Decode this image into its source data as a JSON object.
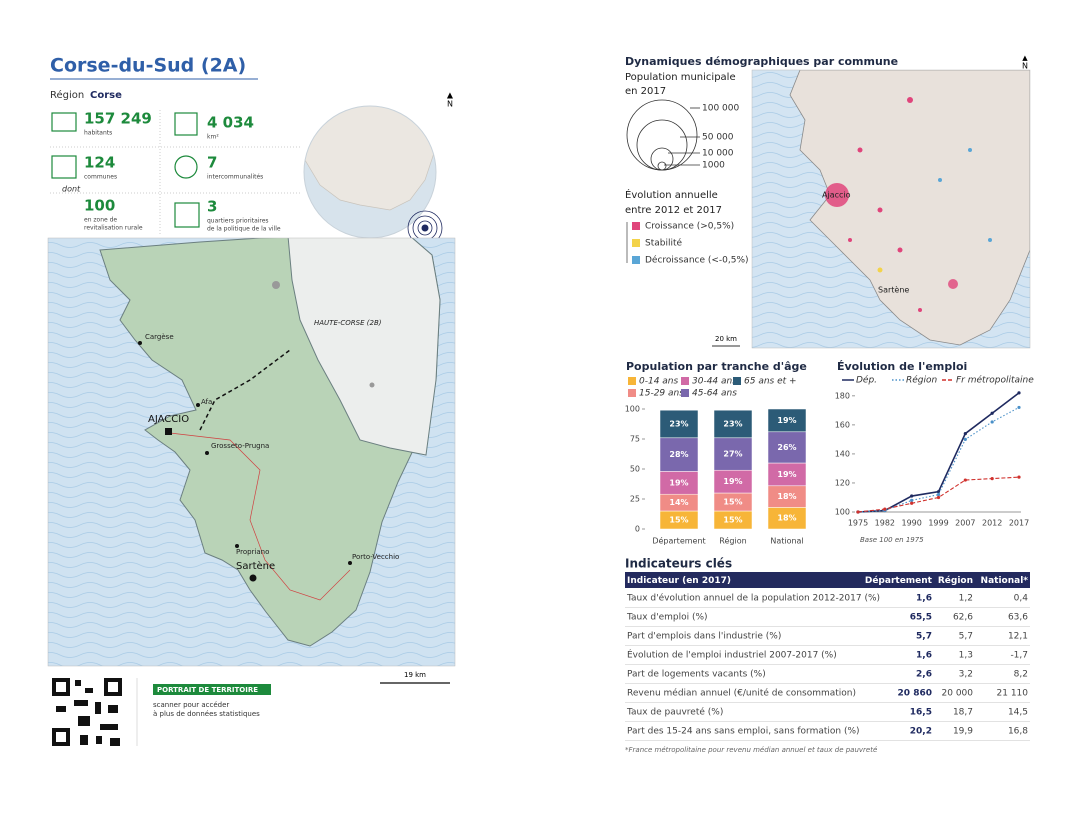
{
  "header": {
    "title": "Corse-du-Sud (2A)",
    "region_label": "Région",
    "region": "Corse"
  },
  "stats": {
    "population": {
      "value": "157 249",
      "label": "habitants"
    },
    "area": {
      "value": "4 034",
      "label": "km²"
    },
    "communes": {
      "value": "124",
      "label": "communes"
    },
    "intercommunalites": {
      "value": "7",
      "label": "intercommunalités"
    },
    "dont": "dont",
    "zrr": {
      "value": "100",
      "label1": "en zone de",
      "label2": "revitalisation rurale"
    },
    "qpv": {
      "value": "3",
      "label1": "quartiers prioritaires",
      "label2": "de la politique de la ville"
    }
  },
  "north": "N",
  "map": {
    "places": [
      "HAUTE-CORSE (2B)",
      "Cargèse",
      "AJACCIO",
      "Afa",
      "Grosseto-Prugna",
      "Propriano",
      "Sartène",
      "Porto-Vecchio"
    ],
    "scale": "19 km"
  },
  "footer": {
    "tag": "PORTRAIT DE TERRITOIRE",
    "line1": "scanner pour accéder",
    "line2": "à plus de données statistiques"
  },
  "demography": {
    "title": "Dynamiques démographiques par commune",
    "size_title": "Population municipale",
    "size_subtitle": "en 2017",
    "sizes": [
      "100 000",
      "50 000",
      "10 000",
      "1000"
    ],
    "trend_title": "Évolution annuelle",
    "trend_subtitle": "entre 2012 et 2017",
    "trends": [
      {
        "label": "Croissance (>0,5%)",
        "color": "#e0457b"
      },
      {
        "label": "Stabilité",
        "color": "#f3d34a"
      },
      {
        "label": "Décroissance (<-0,5%)",
        "color": "#5aa6d6"
      }
    ],
    "places": [
      "Ajaccio",
      "Sartène"
    ],
    "scale": "20 km"
  },
  "chart_data": [
    {
      "type": "bar",
      "stacked": true,
      "title": "Population par tranche d'âge",
      "categories": [
        "Département",
        "Région",
        "National"
      ],
      "series": [
        {
          "name": "0-14 ans",
          "color": "#f7b538",
          "values": [
            15,
            15,
            18
          ],
          "value_labels": [
            "15%",
            "15%",
            "18%"
          ]
        },
        {
          "name": "15-29 ans",
          "color": "#f08c86",
          "values": [
            14,
            15,
            18
          ],
          "value_labels": [
            "14%",
            "15%",
            "18%"
          ]
        },
        {
          "name": "30-44 ans",
          "color": "#d16aa6",
          "values": [
            19,
            19,
            19
          ],
          "value_labels": [
            "19%",
            "19%",
            "19%"
          ]
        },
        {
          "name": "45-64 ans",
          "color": "#7a68ad",
          "values": [
            28,
            27,
            26
          ],
          "value_labels": [
            "28%",
            "27%",
            "26%"
          ]
        },
        {
          "name": "65 ans et +",
          "color": "#2c5b77",
          "values": [
            23,
            23,
            19
          ],
          "value_labels": [
            "23%",
            "23%",
            "19%"
          ]
        }
      ],
      "ylim": [
        0,
        100
      ],
      "yticks": [
        0,
        25,
        50,
        75,
        100
      ],
      "grid": false
    },
    {
      "type": "line",
      "title": "Évolution de l'emploi",
      "note": "Base 100 en 1975",
      "categories": [
        "1975",
        "1982",
        "1990",
        "1999",
        "2007",
        "2012",
        "2017"
      ],
      "series": [
        {
          "name": "Dép.",
          "color": "#1f2a60",
          "style": "solid",
          "values": [
            100,
            101,
            111,
            114,
            154,
            168,
            182
          ]
        },
        {
          "name": "Région",
          "color": "#4a90c8",
          "style": "dotted",
          "values": [
            100,
            101,
            108,
            112,
            150,
            162,
            172
          ]
        },
        {
          "name": "Fr métropolitaine",
          "color": "#d0312d",
          "style": "dashed",
          "values": [
            100,
            102,
            106,
            110,
            122,
            123,
            124
          ]
        }
      ],
      "ylim": [
        100,
        184
      ],
      "yticks": [
        100,
        120,
        140,
        160,
        180
      ],
      "grid": false
    }
  ],
  "indicators": {
    "title": "Indicateurs clés",
    "header": [
      "Indicateur (en 2017)",
      "Département",
      "Région",
      "National*"
    ],
    "rows": [
      [
        "Taux d'évolution annuel de la population 2012-2017 (%)",
        "1,6",
        "1,2",
        "0,4"
      ],
      [
        "Taux d'emploi (%)",
        "65,5",
        "62,6",
        "63,6"
      ],
      [
        "Part d'emplois dans l'industrie (%)",
        "5,7",
        "5,7",
        "12,1"
      ],
      [
        "Évolution de l'emploi industriel 2007-2017 (%)",
        "1,6",
        "1,3",
        "-1,7"
      ],
      [
        "Part de logements vacants (%)",
        "2,6",
        "3,2",
        "8,2"
      ],
      [
        "Revenu médian annuel (€/unité de consommation)",
        "20 860",
        "20 000",
        "21 110"
      ],
      [
        "Taux de pauvreté (%)",
        "16,5",
        "18,7",
        "14,5"
      ],
      [
        "Part des 15-24 ans sans emploi, sans formation (%)",
        "20,2",
        "19,9",
        "16,8"
      ]
    ],
    "footnote": "*France métropolitaine pour revenu médian annuel et taux de pauvreté"
  }
}
